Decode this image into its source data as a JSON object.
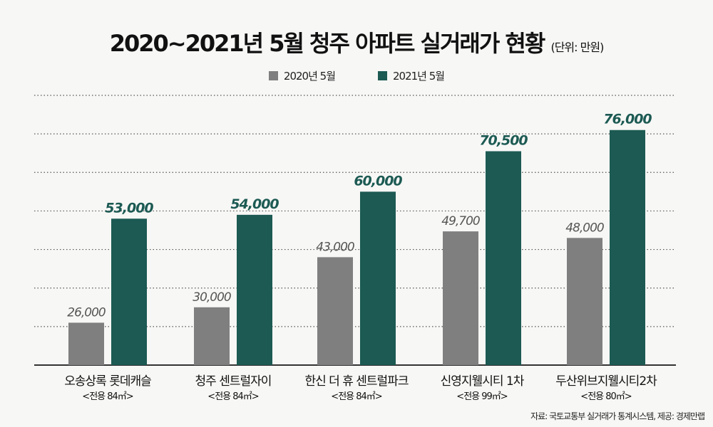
{
  "chart_data": {
    "type": "bar",
    "title": "2020~2021년 5월 청주 아파트 실거래가 현황",
    "unit_note": "(단위: 만원)",
    "categories": [
      {
        "name": "오송상록 롯데캐슬",
        "sub": "<전용 84㎡>"
      },
      {
        "name": "청주 센트럴자이",
        "sub": "<전용 84㎡>"
      },
      {
        "name": "한신 더 휴 센트럴파크",
        "sub": "<전용 84㎡>"
      },
      {
        "name": "신영지웰시티 1차",
        "sub": "<전용 99㎡>"
      },
      {
        "name": "두산위브지웰시티2차",
        "sub": "<전용 80㎡>"
      }
    ],
    "series": [
      {
        "name": "2020년 5월",
        "color": "#7f7f7f",
        "values": [
          26000,
          30000,
          43000,
          49700,
          48000
        ],
        "labels": [
          "26,000",
          "30,000",
          "43,000",
          "49,700",
          "48,000"
        ]
      },
      {
        "name": "2021년 5월",
        "color": "#1c5a53",
        "values": [
          53000,
          54000,
          60000,
          70500,
          76000
        ],
        "labels": [
          "53,000",
          "54,000",
          "60,000",
          "70,500",
          "76,000"
        ]
      }
    ],
    "ylim": [
      15000,
      85000
    ],
    "grid": true,
    "legend": "top-center"
  },
  "source": "자료: 국토교통부 실거래가 통계시스템, 제공: 경제만랩"
}
